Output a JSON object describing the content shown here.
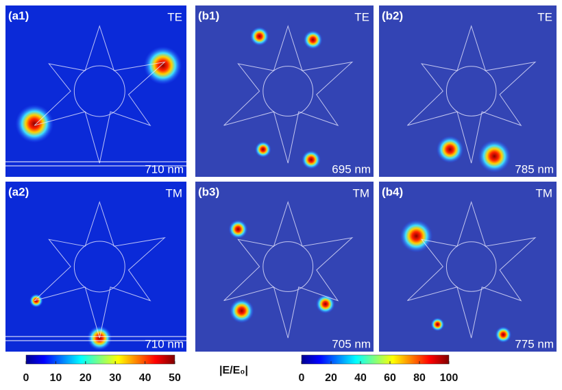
{
  "panels": [
    {
      "label": "(a1)",
      "mode": "TE",
      "wavelength": "710 nm"
    },
    {
      "label": "(b1)",
      "mode": "TE",
      "wavelength": "695 nm"
    },
    {
      "label": "(b2)",
      "mode": "TE",
      "wavelength": "785 nm"
    },
    {
      "label": "(a2)",
      "mode": "TM",
      "wavelength": "710 nm"
    },
    {
      "label": "(b3)",
      "mode": "TM",
      "wavelength": "705 nm"
    },
    {
      "label": "(b4)",
      "mode": "TM",
      "wavelength": "775 nm"
    }
  ],
  "colorbar_label": "|E/E₀|",
  "colorbars": [
    {
      "lim": [
        0,
        50
      ],
      "ticks": [
        0,
        10,
        20,
        30,
        40,
        50
      ]
    },
    {
      "lim": [
        0,
        100
      ],
      "ticks": [
        0,
        20,
        40,
        60,
        80,
        100
      ]
    }
  ]
}
